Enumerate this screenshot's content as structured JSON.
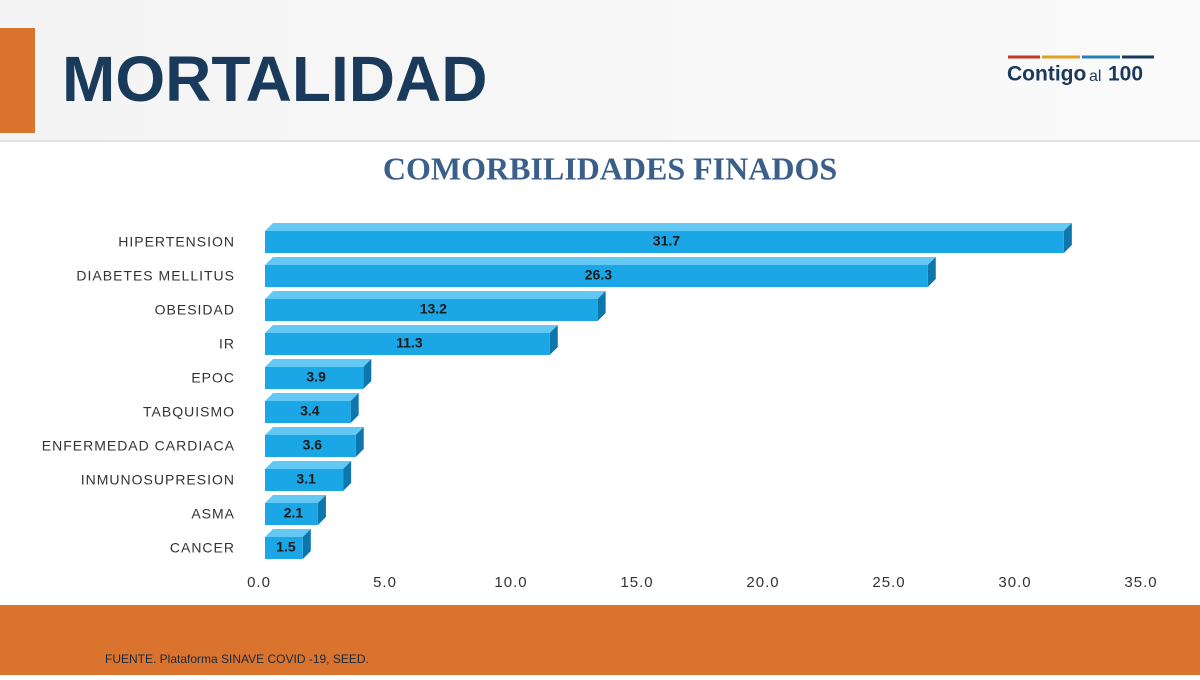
{
  "header": {
    "title": "MORTALIDAD",
    "logo": [
      "Contigo",
      "al",
      "100"
    ]
  },
  "chart_data": {
    "type": "hbar",
    "title": "COMORBILIDADES FINADOS",
    "categories": [
      "HIPERTENSION",
      "DIABETES MELLITUS",
      "OBESIDAD",
      "IR",
      "EPOC",
      "TABQUISMO",
      "ENFERMEDAD CARDIACA",
      "INMUNOSUPRESION",
      "ASMA",
      "CANCER"
    ],
    "values": [
      31.7,
      26.3,
      13.2,
      11.3,
      3.9,
      3.4,
      3.6,
      3.1,
      2.1,
      1.5
    ],
    "color": "#1ba6e6",
    "xlim": [
      0,
      35
    ],
    "xticks": [
      {
        "value": 0,
        "label": "0.0"
      },
      {
        "value": 5,
        "label": "5.0"
      },
      {
        "value": 10,
        "label": "10.0"
      },
      {
        "value": 15,
        "label": "15.0"
      },
      {
        "value": 20,
        "label": "20.0"
      },
      {
        "value": 25,
        "label": "25.0"
      },
      {
        "value": 30,
        "label": "30.0"
      },
      {
        "value": 35,
        "label": "35.0"
      }
    ],
    "grid": false
  },
  "footer": {
    "source": "FUENTE. Plataforma SINAVE COVID -19, SEED."
  }
}
